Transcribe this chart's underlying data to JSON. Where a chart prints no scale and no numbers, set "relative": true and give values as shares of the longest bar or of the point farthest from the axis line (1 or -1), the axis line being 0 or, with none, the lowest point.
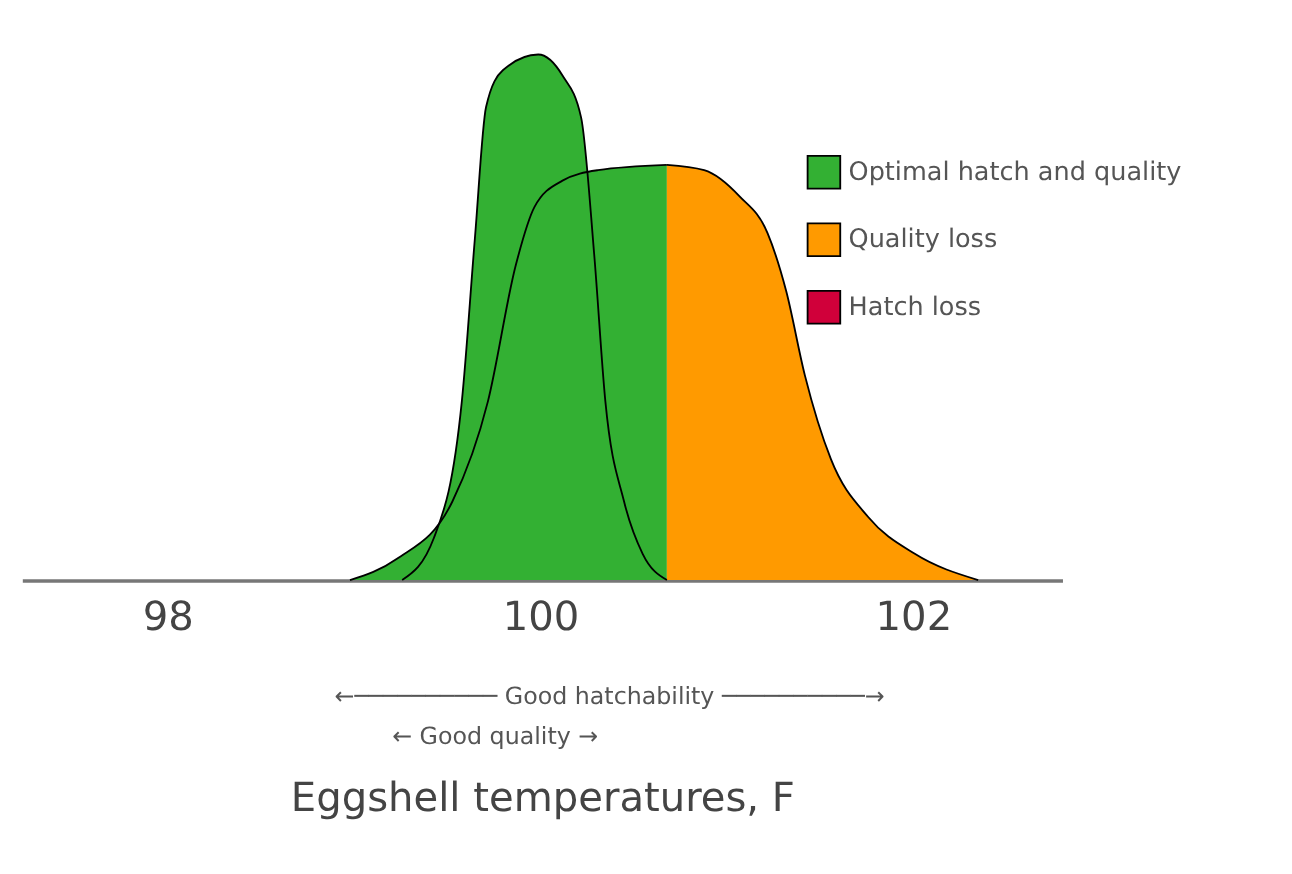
{
  "chart_data": {
    "type": "area",
    "relative": true,
    "xlabel": "Eggshell temperatures, F",
    "xlim": [
      97.22,
      102.8
    ],
    "xticks": [
      98,
      100,
      102
    ],
    "legend": "top right",
    "grid": false,
    "series": [
      {
        "name": "Optimal hatch and quality",
        "color": "#33b033",
        "x": [
          98.98,
          99.23,
          99.53,
          99.72,
          99.87,
          99.97,
          100.12,
          100.31,
          100.68
        ],
        "values": [
          0,
          0.04,
          0.15,
          0.34,
          0.6,
          0.71,
          0.76,
          0.78,
          0.79
        ]
      },
      {
        "color": "#33b033",
        "x": [
          99.26,
          99.43,
          99.58,
          99.65,
          99.71,
          99.8,
          99.99,
          100.12,
          100.22,
          100.29,
          100.35,
          100.45,
          100.55,
          100.68
        ],
        "values": [
          0,
          0.08,
          0.34,
          0.65,
          0.9,
          0.97,
          1,
          0.96,
          0.88,
          0.62,
          0.34,
          0.15,
          0.05,
          0
        ]
      },
      {
        "name": "Quality loss",
        "color": "#ff9a00",
        "x": [
          100.68,
          100.88,
          101.07,
          101.22,
          101.32,
          101.42,
          101.56,
          101.76,
          102.01,
          102.35
        ],
        "values": [
          0.79,
          0.78,
          0.73,
          0.66,
          0.55,
          0.39,
          0.23,
          0.12,
          0.05,
          0
        ]
      },
      {
        "name": "Hatch loss",
        "color": "#d0003a"
      }
    ],
    "annotations": [
      "←────────── Good hatchability ──────────→",
      "← Good quality →"
    ]
  }
}
